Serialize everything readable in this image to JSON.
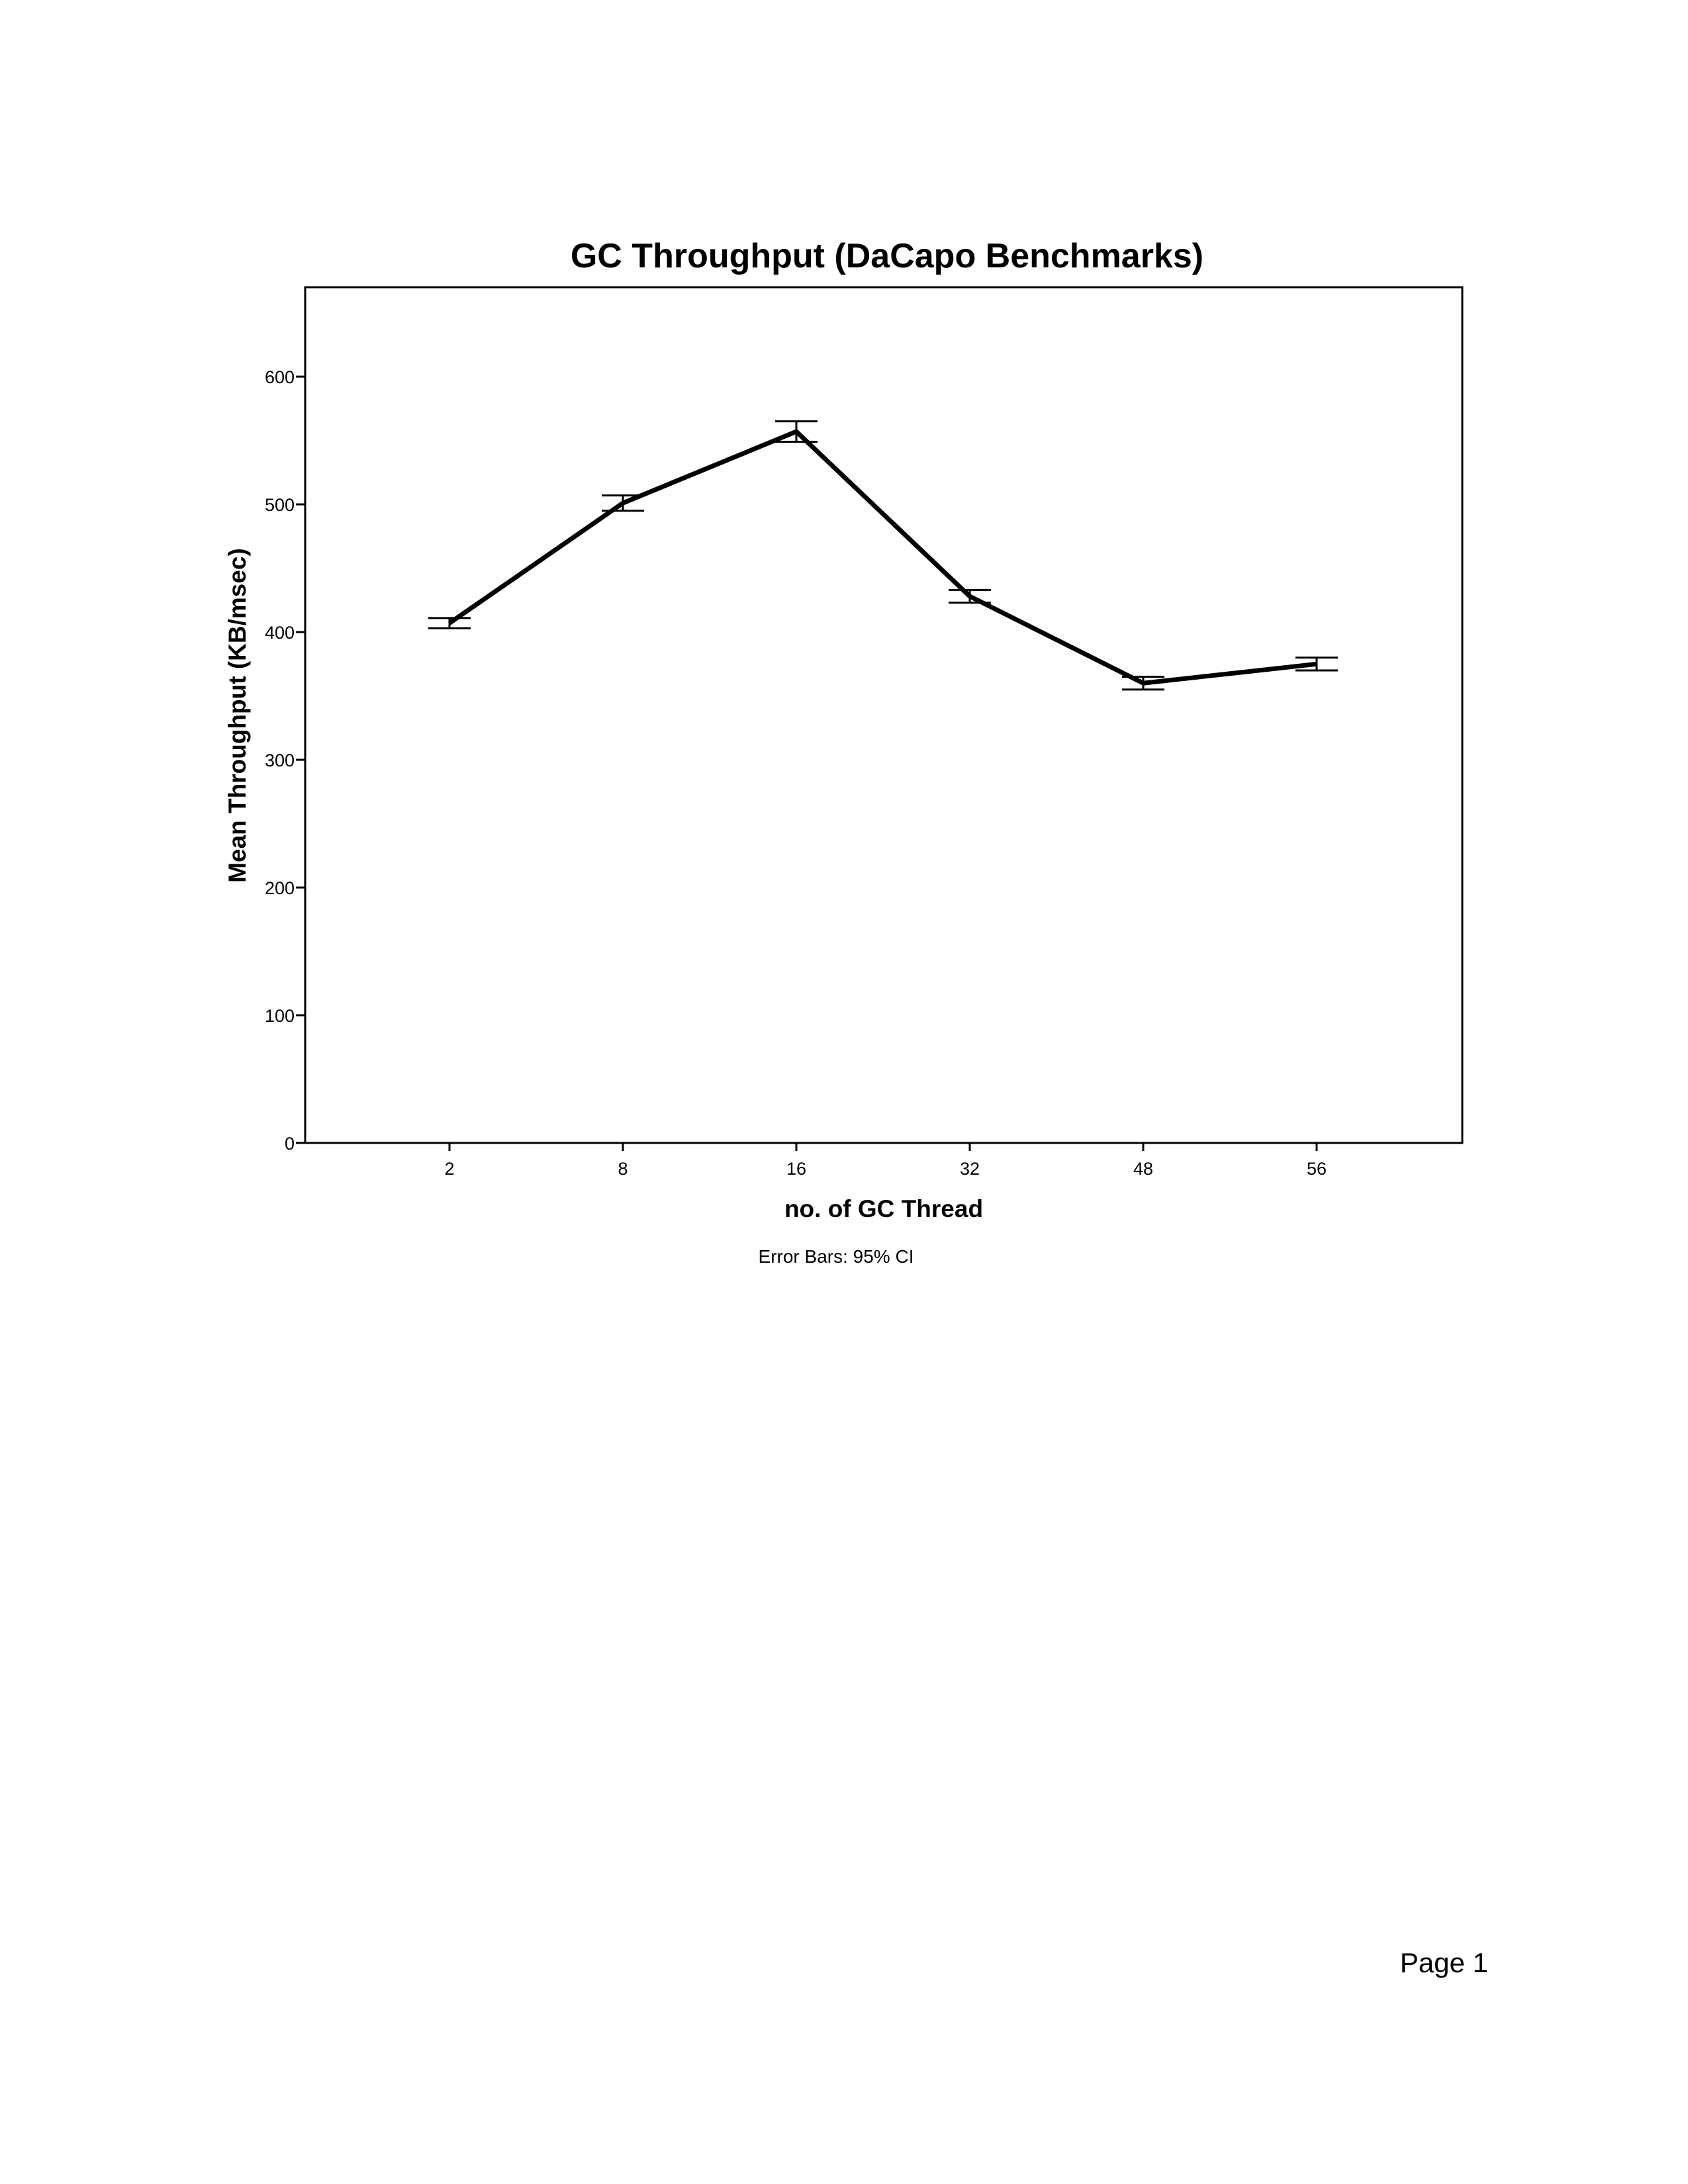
{
  "chart_data": {
    "type": "line",
    "title": "GC Throughput (DaCapo Benchmarks)",
    "xlabel": "no. of GC Thread",
    "ylabel": "Mean Throughput (KB/msec)",
    "categories": [
      "2",
      "8",
      "16",
      "32",
      "48",
      "56"
    ],
    "series": [
      {
        "values": [
          407,
          501,
          557,
          428,
          360,
          375
        ],
        "ci_lower": [
          403,
          495,
          549,
          423,
          355,
          370
        ],
        "ci_upper": [
          411,
          507,
          565,
          433,
          365,
          380
        ]
      }
    ],
    "ylim": [
      0,
      670
    ],
    "yticks": [
      0,
      100,
      200,
      300,
      400,
      500,
      600
    ],
    "grid": false,
    "legend": "none",
    "caption": "Error Bars: 95% CI",
    "line_color": "#000000"
  },
  "page": {
    "number_label": "Page 1"
  }
}
